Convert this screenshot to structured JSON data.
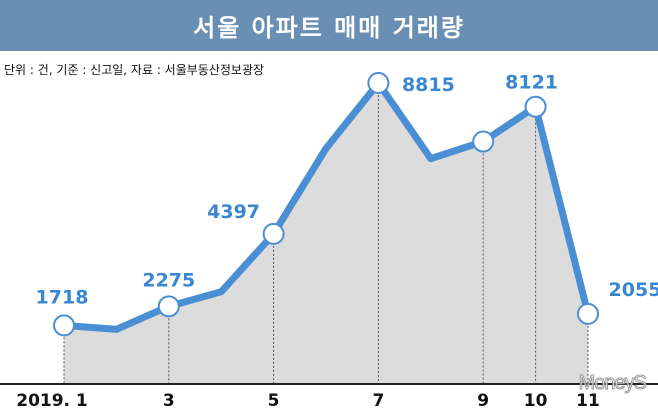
{
  "title": "서울 아파트 매매 거래량",
  "note": "단위 : 건, 기준 : 신고일, 자료 : 서울부동산정보광장",
  "watermark": "MoneyS",
  "colors": {
    "line": "#4a8fd4",
    "fill": "#dcdcdc",
    "label": "#3a86d0",
    "title_bg": "#6a8fb5"
  },
  "chart_data": {
    "type": "area",
    "x_ticks": [
      "2019. 1",
      "3",
      "5",
      "7",
      "9",
      "10",
      "11"
    ],
    "points": [
      {
        "month": 1,
        "value": 1718,
        "label": "1718",
        "marker": true
      },
      {
        "month": 2,
        "value": 1600,
        "label": "",
        "marker": false
      },
      {
        "month": 3,
        "value": 2275,
        "label": "2275",
        "marker": true
      },
      {
        "month": 4,
        "value": 2700,
        "label": "",
        "marker": false
      },
      {
        "month": 5,
        "value": 4397,
        "label": "4397",
        "marker": true
      },
      {
        "month": 6,
        "value": 6900,
        "label": "",
        "marker": false
      },
      {
        "month": 7,
        "value": 8815,
        "label": "8815",
        "marker": true
      },
      {
        "month": 8,
        "value": 6600,
        "label": "",
        "marker": false
      },
      {
        "month": 9,
        "value": 7100,
        "label": "",
        "marker": true
      },
      {
        "month": 10,
        "value": 8121,
        "label": "8121",
        "marker": true
      },
      {
        "month": 11,
        "value": 2055,
        "label": "2055",
        "marker": true
      }
    ],
    "ylim": [
      0,
      10000
    ],
    "grid": false
  }
}
